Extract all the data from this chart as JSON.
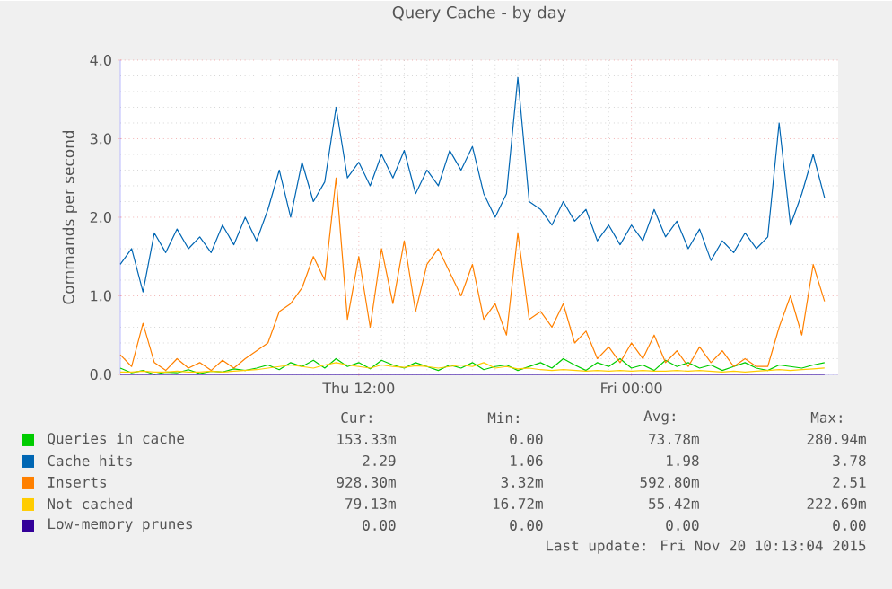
{
  "chart_data": {
    "type": "line",
    "title": "Query Cache - by day",
    "ylabel": "Commands per second",
    "x": [
      "2015-11-19T01:30",
      "2015-11-19T02:00",
      "2015-11-19T02:30",
      "2015-11-19T03:00",
      "2015-11-19T03:30",
      "2015-11-19T04:00",
      "2015-11-19T04:30",
      "2015-11-19T05:00",
      "2015-11-19T05:30",
      "2015-11-19T06:00",
      "2015-11-19T06:30",
      "2015-11-19T07:00",
      "2015-11-19T07:30",
      "2015-11-19T08:00",
      "2015-11-19T08:30",
      "2015-11-19T09:00",
      "2015-11-19T09:30",
      "2015-11-19T10:00",
      "2015-11-19T10:30",
      "2015-11-19T11:00",
      "2015-11-19T11:30",
      "2015-11-19T12:00",
      "2015-11-19T12:30",
      "2015-11-19T13:00",
      "2015-11-19T13:30",
      "2015-11-19T14:00",
      "2015-11-19T14:30",
      "2015-11-19T15:00",
      "2015-11-19T15:30",
      "2015-11-19T16:00",
      "2015-11-19T16:30",
      "2015-11-19T17:00",
      "2015-11-19T17:30",
      "2015-11-19T18:00",
      "2015-11-19T18:30",
      "2015-11-19T19:00",
      "2015-11-19T19:30",
      "2015-11-19T20:00",
      "2015-11-19T20:30",
      "2015-11-19T21:00",
      "2015-11-19T21:30",
      "2015-11-19T22:00",
      "2015-11-19T22:30",
      "2015-11-19T23:00",
      "2015-11-19T23:30",
      "2015-11-20T00:00",
      "2015-11-20T00:30",
      "2015-11-20T01:00",
      "2015-11-20T01:30",
      "2015-11-20T02:00",
      "2015-11-20T02:30",
      "2015-11-20T03:00",
      "2015-11-20T03:30",
      "2015-11-20T04:00",
      "2015-11-20T04:30",
      "2015-11-20T05:00",
      "2015-11-20T05:30",
      "2015-11-20T06:00",
      "2015-11-20T06:30",
      "2015-11-20T07:00",
      "2015-11-20T07:30",
      "2015-11-20T08:00",
      "2015-11-20T08:30"
    ],
    "xlim": [
      "2015-11-19T01:30",
      "2015-11-20T09:06"
    ],
    "xticks": [
      {
        "value": "2015-11-19T12:00",
        "label": "Thu 12:00"
      },
      {
        "value": "2015-11-20T00:00",
        "label": "Fri 00:00"
      }
    ],
    "ylim": [
      0,
      4
    ],
    "yticks": [
      {
        "value": 0,
        "label": "0.0"
      },
      {
        "value": 1,
        "label": "1.0"
      },
      {
        "value": 2,
        "label": "2.0"
      },
      {
        "value": 3,
        "label": "3.0"
      },
      {
        "value": 4,
        "label": "4.0"
      }
    ],
    "grid": true,
    "legend": "bottom",
    "marker": "none",
    "line_style": "solid",
    "series": [
      {
        "name": "Queries in cache",
        "color": "#00cc00",
        "values": [
          0.08,
          0.02,
          0.05,
          0.0,
          0.03,
          0.02,
          0.06,
          0.01,
          0.04,
          0.03,
          0.07,
          0.05,
          0.08,
          0.12,
          0.06,
          0.15,
          0.1,
          0.18,
          0.08,
          0.2,
          0.1,
          0.15,
          0.07,
          0.18,
          0.12,
          0.08,
          0.15,
          0.1,
          0.05,
          0.12,
          0.08,
          0.15,
          0.06,
          0.1,
          0.12,
          0.05,
          0.1,
          0.15,
          0.08,
          0.2,
          0.12,
          0.05,
          0.15,
          0.1,
          0.2,
          0.08,
          0.12,
          0.05,
          0.18,
          0.1,
          0.15,
          0.08,
          0.12,
          0.05,
          0.1,
          0.15,
          0.08,
          0.05,
          0.12,
          0.1,
          0.08,
          0.12,
          0.15
        ]
      },
      {
        "name": "Cache hits",
        "color": "#0066b3",
        "values": [
          1.4,
          1.6,
          1.05,
          1.8,
          1.55,
          1.85,
          1.6,
          1.75,
          1.55,
          1.9,
          1.65,
          2.0,
          1.7,
          2.1,
          2.6,
          2.0,
          2.7,
          2.2,
          2.45,
          3.4,
          2.5,
          2.7,
          2.4,
          2.8,
          2.5,
          2.85,
          2.3,
          2.6,
          2.4,
          2.85,
          2.6,
          2.9,
          2.3,
          2.0,
          2.3,
          3.78,
          2.2,
          2.1,
          1.9,
          2.2,
          1.95,
          2.1,
          1.7,
          1.9,
          1.65,
          1.9,
          1.7,
          2.1,
          1.75,
          1.95,
          1.6,
          1.85,
          1.45,
          1.7,
          1.55,
          1.8,
          1.6,
          1.75,
          3.2,
          1.9,
          2.3,
          2.8,
          2.25
        ]
      },
      {
        "name": "Inserts",
        "color": "#ff8000",
        "values": [
          0.25,
          0.1,
          0.65,
          0.15,
          0.05,
          0.2,
          0.08,
          0.15,
          0.05,
          0.18,
          0.08,
          0.2,
          0.3,
          0.4,
          0.8,
          0.9,
          1.1,
          1.5,
          1.2,
          2.5,
          0.7,
          1.5,
          0.6,
          1.6,
          0.9,
          1.7,
          0.8,
          1.4,
          1.6,
          1.3,
          1.0,
          1.4,
          0.7,
          0.9,
          0.5,
          1.8,
          0.7,
          0.8,
          0.6,
          0.9,
          0.4,
          0.55,
          0.2,
          0.35,
          0.15,
          0.4,
          0.2,
          0.5,
          0.15,
          0.3,
          0.1,
          0.35,
          0.15,
          0.3,
          0.1,
          0.2,
          0.1,
          0.1,
          0.6,
          1.0,
          0.5,
          1.4,
          0.93
        ]
      },
      {
        "name": "Not cached",
        "color": "#ffcc00",
        "values": [
          0.03,
          0.03,
          0.04,
          0.03,
          0.03,
          0.04,
          0.03,
          0.03,
          0.04,
          0.03,
          0.04,
          0.05,
          0.06,
          0.08,
          0.1,
          0.12,
          0.1,
          0.08,
          0.12,
          0.15,
          0.12,
          0.1,
          0.08,
          0.12,
          0.1,
          0.09,
          0.11,
          0.1,
          0.08,
          0.1,
          0.12,
          0.1,
          0.15,
          0.08,
          0.1,
          0.07,
          0.08,
          0.06,
          0.05,
          0.06,
          0.05,
          0.04,
          0.05,
          0.04,
          0.05,
          0.04,
          0.05,
          0.04,
          0.04,
          0.05,
          0.04,
          0.05,
          0.04,
          0.03,
          0.04,
          0.03,
          0.04,
          0.05,
          0.06,
          0.05,
          0.06,
          0.07,
          0.08
        ]
      },
      {
        "name": "Low-memory prunes",
        "color": "#330099",
        "values": [
          0,
          0,
          0,
          0,
          0,
          0,
          0,
          0,
          0,
          0,
          0,
          0,
          0,
          0,
          0,
          0,
          0,
          0,
          0,
          0,
          0,
          0,
          0,
          0,
          0,
          0,
          0,
          0,
          0,
          0,
          0,
          0,
          0,
          0,
          0,
          0,
          0,
          0,
          0,
          0,
          0,
          0,
          0,
          0,
          0,
          0,
          0,
          0,
          0,
          0,
          0,
          0,
          0,
          0,
          0,
          0,
          0,
          0,
          0,
          0,
          0,
          0,
          0
        ]
      }
    ],
    "annotations": [
      "Cur:",
      "Min:",
      "Avg:",
      "Max:",
      "153.33m",
      "0.00",
      "73.78m",
      "280.94m",
      "2.29",
      "1.06",
      "1.98",
      "3.78",
      "928.30m",
      "3.32m",
      "592.80m",
      "2.51",
      "79.13m",
      "16.72m",
      "55.42m",
      "222.69m",
      "0.00",
      "0.00",
      "0.00",
      "0.00",
      "Last update: Fri Nov 20 10:13:04 2015"
    ]
  }
}
